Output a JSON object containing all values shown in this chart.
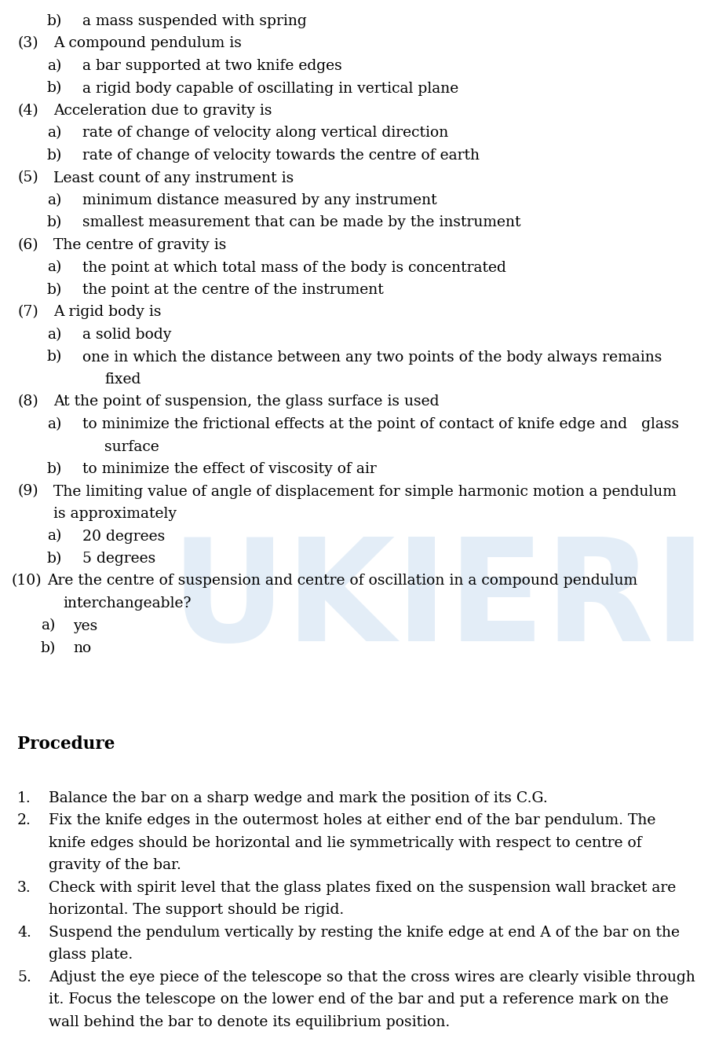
{
  "background_color": "#ffffff",
  "watermark_text": "UKIERI",
  "watermark_color": "#c8ddf0",
  "watermark_alpha": 0.5,
  "text_color": "#000000",
  "font_size": 13.5,
  "title_font_size": 15.5,
  "lines": [
    {
      "type": "item_b_top",
      "text": "a mass suspended with spring"
    },
    {
      "type": "num_item",
      "num": "(3)",
      "text": "A compound pendulum is"
    },
    {
      "type": "item_a",
      "text": "a bar supported at two knife edges"
    },
    {
      "type": "item_b",
      "text": "a rigid body capable of oscillating in vertical plane"
    },
    {
      "type": "num_item",
      "num": "(4)",
      "text": "Acceleration due to gravity is"
    },
    {
      "type": "item_a",
      "text": "rate of change of velocity along vertical direction"
    },
    {
      "type": "item_b",
      "text": "rate of change of velocity towards the centre of earth"
    },
    {
      "type": "num_item",
      "num": "(5)",
      "text": "Least count of any instrument is"
    },
    {
      "type": "item_a",
      "text": "minimum distance measured by any instrument"
    },
    {
      "type": "item_b",
      "text": "smallest measurement that can be made by the instrument"
    },
    {
      "type": "num_item",
      "num": "(6)",
      "text": "The centre of gravity is"
    },
    {
      "type": "item_a",
      "text": "the point at which total mass of the body is concentrated"
    },
    {
      "type": "item_b",
      "text": "the point at the centre of the instrument"
    },
    {
      "type": "num_item",
      "num": "(7)",
      "text": "A rigid body is"
    },
    {
      "type": "item_a",
      "text": "a solid body"
    },
    {
      "type": "item_b_wrap",
      "line1": "one in which the distance between any two points of the body always remains",
      "line2": "fixed"
    },
    {
      "type": "num_item",
      "num": "(8)",
      "text": "At the point of suspension, the glass surface is used"
    },
    {
      "type": "item_a_wrap",
      "line1": "to minimize the frictional effects at the point of contact of knife edge and   glass",
      "line2": "surface"
    },
    {
      "type": "item_b",
      "text": "to minimize the effect of viscosity of air"
    },
    {
      "type": "num_item_wrap",
      "num": "(9)",
      "line1": "The limiting value of angle of displacement for simple harmonic motion a pendulum",
      "line2": "is approximately"
    },
    {
      "type": "item_a",
      "text": "20 degrees"
    },
    {
      "type": "item_b",
      "text": "5 degrees"
    },
    {
      "type": "num10_wrap",
      "line1": "Are the centre of suspension and centre of oscillation in a compound pendulum",
      "line2": "interchangeable?"
    },
    {
      "type": "item_a10",
      "text": "yes"
    },
    {
      "type": "item_b10",
      "text": "no"
    },
    {
      "type": "blank3"
    },
    {
      "type": "section_title",
      "text": "Procedure"
    },
    {
      "type": "blank1"
    },
    {
      "type": "proc_item",
      "num": "1.",
      "lines": [
        "Balance the bar on a sharp wedge and mark the position of its C.G."
      ]
    },
    {
      "type": "proc_item",
      "num": "2.",
      "lines": [
        "Fix the knife edges in the outermost holes at either end of the bar pendulum. The",
        "knife edges should be horizontal and lie symmetrically with respect to centre of",
        "gravity of the bar."
      ]
    },
    {
      "type": "proc_item",
      "num": "3.",
      "lines": [
        "Check with spirit level that the glass plates fixed on the suspension wall bracket are",
        "horizontal. The support should be rigid."
      ]
    },
    {
      "type": "proc_item",
      "num": "4.",
      "lines": [
        "Suspend the pendulum vertically by resting the knife edge at end A of the bar on the",
        "glass plate."
      ]
    },
    {
      "type": "proc_item",
      "num": "5.",
      "lines": [
        "Adjust the eye piece of the telescope so that the cross wires are clearly visible through",
        "it. Focus the telescope on the lower end of the bar and put a reference mark on the",
        "wall behind the bar to denote its equilibrium position."
      ]
    }
  ]
}
